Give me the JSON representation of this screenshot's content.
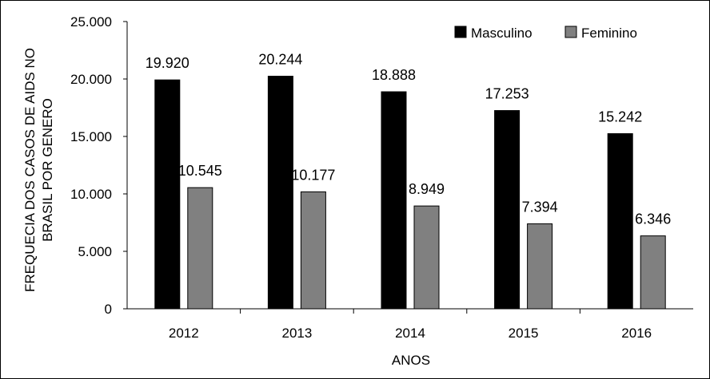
{
  "chart_data": {
    "type": "bar",
    "title": "",
    "xlabel": "ANOS",
    "ylabel_lines": [
      "FREQUECIA DOS CASOS DE AIDS NO",
      "BRASIL POR GENERO"
    ],
    "categories": [
      "2012",
      "2013",
      "2014",
      "2015",
      "2016"
    ],
    "ylim": [
      0,
      25000
    ],
    "yticks": [
      0,
      5000,
      10000,
      15000,
      20000,
      25000
    ],
    "ytick_labels": [
      "0",
      "5.000",
      "10.000",
      "15.000",
      "20.000",
      "25.000"
    ],
    "grid": false,
    "legend_position": "top-right",
    "series": [
      {
        "name": "Masculino",
        "color": "#000000",
        "values": [
          19920,
          20244,
          18888,
          17253,
          15242
        ],
        "labels": [
          "19.920",
          "20.244",
          "18.888",
          "17.253",
          "15.242"
        ]
      },
      {
        "name": "Feminino",
        "color": "#808080",
        "values": [
          10545,
          10177,
          8949,
          7394,
          6346
        ],
        "labels": [
          "10.545",
          "10.177",
          "8.949",
          "7.394",
          "6.346"
        ]
      }
    ]
  }
}
